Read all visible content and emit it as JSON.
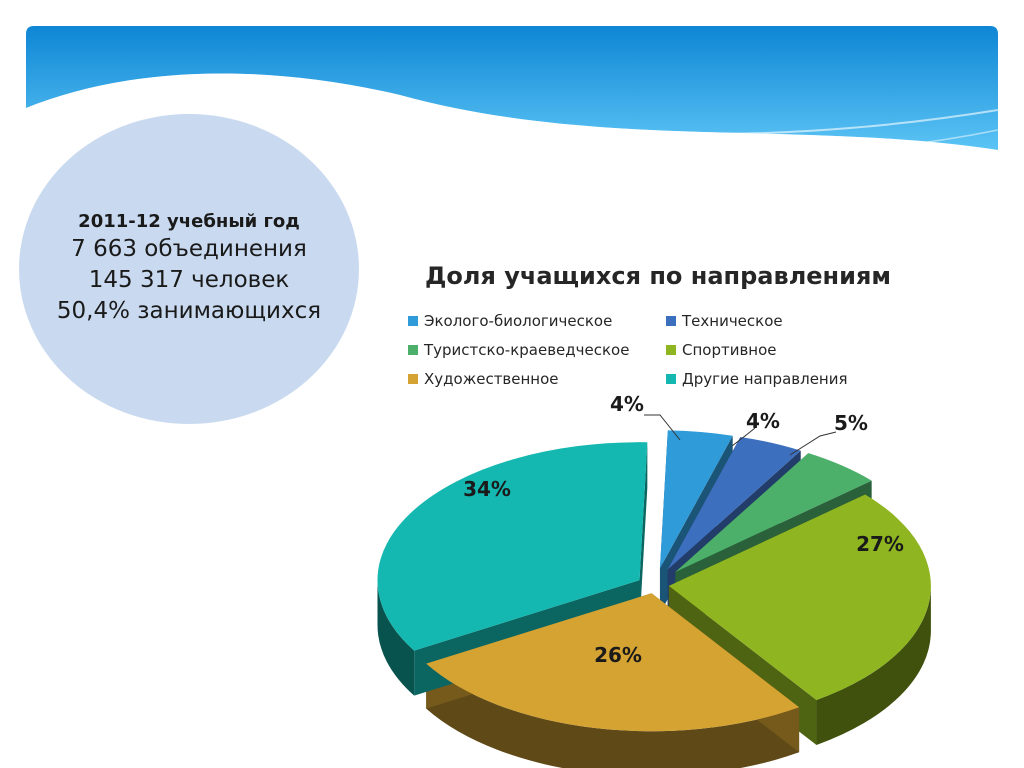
{
  "info": {
    "year": "2011-12 учебный год",
    "associations": "7 663 объединения",
    "people": "145 317 человек",
    "share": "50,4% занимающихся"
  },
  "chart_data": {
    "type": "pie",
    "title": "Доля учащихся по направлениям",
    "legend_position": "top",
    "categories": [
      "Эколого-биологическое",
      "Техническое",
      "Туристско-краеведческое",
      "Спортивное",
      "Художественное",
      "Другие направления"
    ],
    "values": [
      4,
      4,
      5,
      27,
      26,
      34
    ],
    "labels": [
      "4%",
      "4%",
      "5%",
      "27%",
      "26%",
      "34%"
    ],
    "colors": [
      "#2f9bd9",
      "#3d6fbf",
      "#4caf6a",
      "#8fb520",
      "#d4a332",
      "#14b8b0"
    ]
  }
}
